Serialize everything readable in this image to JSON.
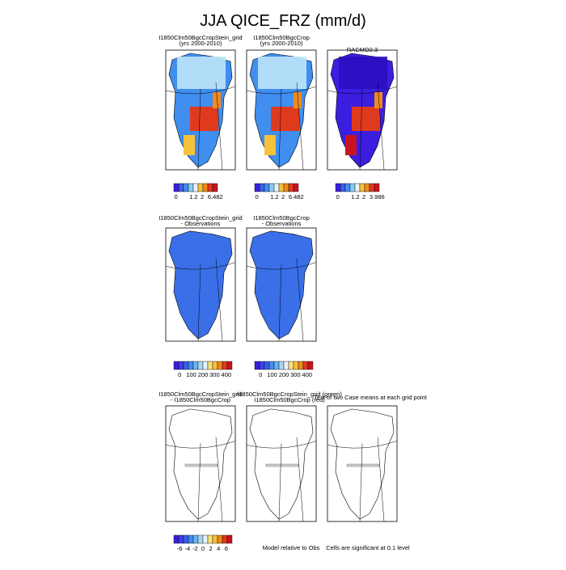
{
  "title": "JJA QICE_FRZ (mm/d)",
  "rows": [
    {
      "panels": [
        {
          "title": [
            "I1850Clm50BgcCropStein_grid",
            "(yrs 2000-2010)"
          ]
        },
        {
          "title": [
            "I1850Clm50BgcCrop",
            "(yrs 2000-2010)"
          ]
        },
        {
          "title": [
            "RACMO2.3"
          ]
        }
      ],
      "colorbars": [
        {
          "colors": [
            "#3b1ee0",
            "#3d5ee8",
            "#3f8ef0",
            "#8ccbf2",
            "#e8f2f8",
            "#f5c23a",
            "#f08a1e",
            "#e03a1e",
            "#c8141e"
          ],
          "labels": [
            "0",
            "1.2",
            "2",
            "6.482"
          ]
        },
        {
          "colors": [
            "#3b1ee0",
            "#3d5ee8",
            "#3f8ef0",
            "#8ccbf2",
            "#e8f2f8",
            "#f5c23a",
            "#f08a1e",
            "#e03a1e",
            "#c8141e"
          ],
          "labels": [
            "0",
            "1.2",
            "2",
            "6.482"
          ]
        },
        {
          "colors": [
            "#3b1ee0",
            "#3d5ee8",
            "#3f8ef0",
            "#8ccbf2",
            "#e8f2f8",
            "#f5c23a",
            "#f08a1e",
            "#e03a1e",
            "#c8141e"
          ],
          "labels": [
            "0",
            "1.2",
            "2",
            "3.986"
          ]
        }
      ]
    },
    {
      "panels": [
        {
          "title": [
            "I1850Clm50BgcCropStein_grid",
            "- Observations"
          ]
        },
        {
          "title": [
            "I1850Clm50BgcCrop",
            "- Observations"
          ]
        }
      ],
      "colorbars": [
        {
          "colors": [
            "#3b1ee0",
            "#3d40e4",
            "#3d5ee8",
            "#3f8ef0",
            "#6cb4f0",
            "#a8d8f0",
            "#e8f2f8",
            "#f8e07a",
            "#f5c23a",
            "#f08a1e",
            "#e03a1e",
            "#c8141e"
          ],
          "labels": [
            "0",
            "100",
            "200",
            "300",
            "400"
          ]
        },
        {
          "colors": [
            "#3b1ee0",
            "#3d40e4",
            "#3d5ee8",
            "#3f8ef0",
            "#6cb4f0",
            "#a8d8f0",
            "#e8f2f8",
            "#f8e07a",
            "#f5c23a",
            "#f08a1e",
            "#e03a1e",
            "#c8141e"
          ],
          "labels": [
            "0",
            "100",
            "200",
            "300",
            "400"
          ]
        }
      ]
    },
    {
      "panels": [
        {
          "title": [
            "I1850Clm50BgcCropStein_grid",
            "- I1850Clm50BgcCrop"
          ]
        },
        {
          "title": [
            "I1850Clm50BgcCropStein_grid (green)",
            "I1850Clm50BgcCrop (red)"
          ]
        },
        {
          "title": [
            "Test of two Case means at each grid point"
          ]
        }
      ],
      "colorbars": [
        {
          "colors": [
            "#3b1ee0",
            "#3d40e4",
            "#3d5ee8",
            "#3f8ef0",
            "#6cb4f0",
            "#a8d8f0",
            "#e8f2f8",
            "#f8e07a",
            "#f5c23a",
            "#f08a1e",
            "#e03a1e",
            "#c8141e"
          ],
          "labels": [
            "-6",
            "-4",
            "-2",
            "0",
            "2",
            "4",
            "6"
          ]
        }
      ],
      "notes": [
        "Model relative to Obs",
        "Cells are significant at 0.1 level"
      ]
    }
  ]
}
